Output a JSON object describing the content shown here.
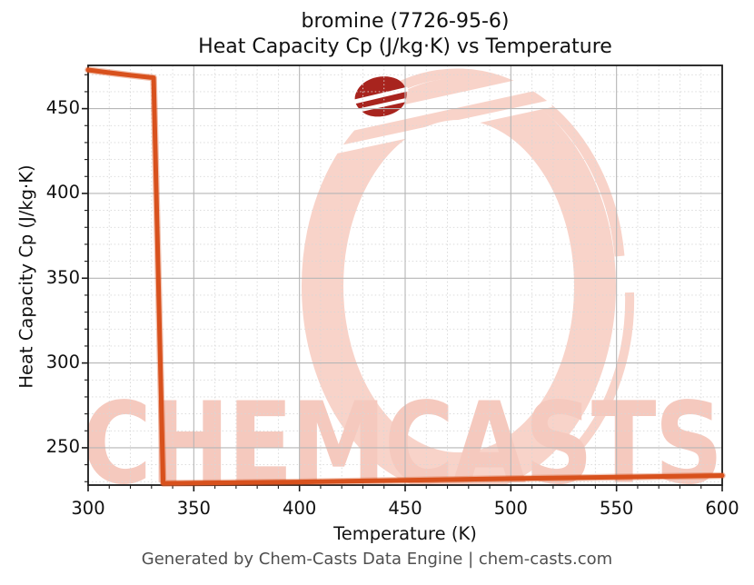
{
  "figure": {
    "title_line1": "bromine (7726-95-6)",
    "title_line2": "Heat Capacity Cp (J/kg·K) vs Temperature",
    "footer": "Generated by Chem-Casts Data Engine | chem-casts.com",
    "watermark_text": "CHEMCASTS"
  },
  "theme": {
    "line_color": "#d8511d",
    "axis_color": "#1a1a1a",
    "grid_major_color": "#b6b6b6",
    "grid_minor_color": "#d7d7d7",
    "watermark_ring_pink": "#f8d3c9",
    "watermark_text_pink": "#f5c9be",
    "watermark_dark_red": "#a8241e",
    "footer_gray": "#4f4f4f",
    "text_color": "#111111"
  },
  "chart_data": {
    "type": "line",
    "title": "bromine (7726-95-6)",
    "subtitle": "Heat Capacity Cp (J/kg·K) vs Temperature",
    "xlabel": "Temperature (K)",
    "ylabel": "Heat Capacity Cp (J/kg·K)",
    "xlim": [
      300,
      600
    ],
    "ylim": [
      228,
      475.5
    ],
    "x_ticks": [
      300,
      350,
      400,
      450,
      500,
      550,
      600
    ],
    "y_ticks": [
      250,
      300,
      350,
      400,
      450
    ],
    "minor_tick_step": 10,
    "grid": "major solid + minor dashed",
    "legend": "none",
    "series": [
      {
        "name": "Heat Capacity Cp",
        "color": "#d8511d",
        "points": [
          [
            300,
            472.8
          ],
          [
            310,
            471.2
          ],
          [
            320,
            469.7
          ],
          [
            331,
            468.2
          ],
          [
            335.5,
            229.0
          ],
          [
            350,
            229.2
          ],
          [
            400,
            229.8
          ],
          [
            450,
            230.8
          ],
          [
            500,
            231.8
          ],
          [
            550,
            232.7
          ],
          [
            600,
            233.6
          ]
        ],
        "note_phase_drop_at_K": 332
      }
    ]
  }
}
